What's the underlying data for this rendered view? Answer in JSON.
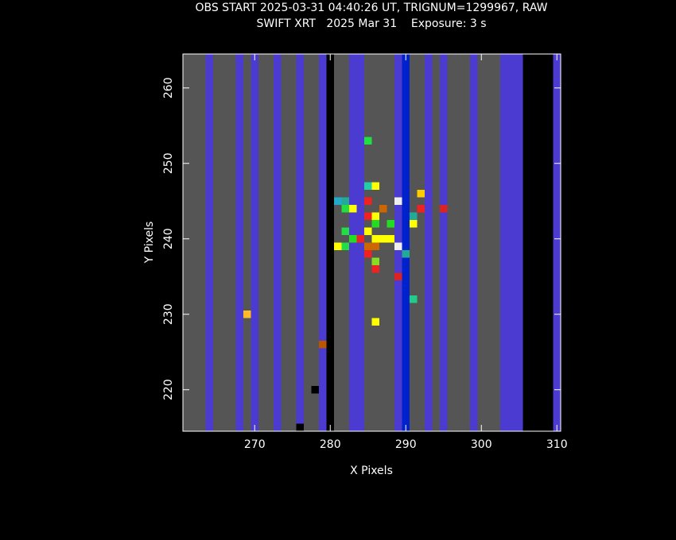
{
  "chart_data": {
    "type": "heatmap",
    "title": "OBS START 2025-03-31 04:40:26 UT, TRIGNUM=1299967, RAW",
    "subtitle": "SWIFT XRT   2025 Mar 31    Exposure: 3 s",
    "xlabel": "X Pixels",
    "ylabel": "Y Pixels",
    "xlim": [
      260.5,
      310.5
    ],
    "ylim": [
      214.5,
      264.5
    ],
    "xticks": [
      270,
      280,
      290,
      300,
      310
    ],
    "yticks": [
      220,
      230,
      240,
      250,
      260
    ],
    "axis_color": "#ffffff",
    "columns": [
      {
        "x": 261,
        "color": "#555555"
      },
      {
        "x": 262,
        "color": "#555555"
      },
      {
        "x": 263,
        "color": "#555555"
      },
      {
        "x": 264,
        "color": "#4b3bd0"
      },
      {
        "x": 265,
        "color": "#555555"
      },
      {
        "x": 266,
        "color": "#555555"
      },
      {
        "x": 267,
        "color": "#555555"
      },
      {
        "x": 268,
        "color": "#4b3bd0"
      },
      {
        "x": 269,
        "color": "#555555"
      },
      {
        "x": 270,
        "color": "#4b3bd0"
      },
      {
        "x": 271,
        "color": "#555555"
      },
      {
        "x": 272,
        "color": "#555555"
      },
      {
        "x": 273,
        "color": "#4b3bd0"
      },
      {
        "x": 274,
        "color": "#555555"
      },
      {
        "x": 275,
        "color": "#555555"
      },
      {
        "x": 276,
        "color": "#4b3bd0"
      },
      {
        "x": 277,
        "color": "#555555"
      },
      {
        "x": 278,
        "color": "#555555"
      },
      {
        "x": 279,
        "color": "#4b3bd0"
      },
      {
        "x": 280,
        "color": "#000000"
      },
      {
        "x": 281,
        "color": "#555555"
      },
      {
        "x": 282,
        "color": "#555555"
      },
      {
        "x": 283,
        "color": "#4b3bd0"
      },
      {
        "x": 284,
        "color": "#4b3bd0"
      },
      {
        "x": 285,
        "color": "#555555"
      },
      {
        "x": 286,
        "color": "#555555"
      },
      {
        "x": 287,
        "color": "#555555"
      },
      {
        "x": 288,
        "color": "#555555"
      },
      {
        "x": 289,
        "color": "#4b3bd0"
      },
      {
        "x": 290,
        "color": "#0022cc"
      },
      {
        "x": 291,
        "color": "#555555"
      },
      {
        "x": 292,
        "color": "#555555"
      },
      {
        "x": 293,
        "color": "#4b3bd0"
      },
      {
        "x": 294,
        "color": "#555555"
      },
      {
        "x": 295,
        "color": "#4b3bd0"
      },
      {
        "x": 296,
        "color": "#555555"
      },
      {
        "x": 297,
        "color": "#555555"
      },
      {
        "x": 298,
        "color": "#555555"
      },
      {
        "x": 299,
        "color": "#4b3bd0"
      },
      {
        "x": 300,
        "color": "#555555"
      },
      {
        "x": 301,
        "color": "#555555"
      },
      {
        "x": 302,
        "color": "#555555"
      },
      {
        "x": 303,
        "color": "#4b3bd0"
      },
      {
        "x": 304,
        "color": "#4b3bd0"
      },
      {
        "x": 305,
        "color": "#4b3bd0"
      },
      {
        "x": 306,
        "color": "#000000"
      },
      {
        "x": 307,
        "color": "#000000"
      },
      {
        "x": 308,
        "color": "#000000"
      },
      {
        "x": 309,
        "color": "#000000"
      },
      {
        "x": 310,
        "color": "#4b3bd0"
      }
    ],
    "pixels": [
      {
        "x": 285,
        "y": 253,
        "color": "#22dd44"
      },
      {
        "x": 285,
        "y": 247,
        "color": "#22ccaa"
      },
      {
        "x": 286,
        "y": 247,
        "color": "#ffff00"
      },
      {
        "x": 292,
        "y": 246,
        "color": "#ffcc00"
      },
      {
        "x": 289,
        "y": 245,
        "color": "#eeeeee"
      },
      {
        "x": 285,
        "y": 245,
        "color": "#ee2222"
      },
      {
        "x": 281,
        "y": 245,
        "color": "#22aacc"
      },
      {
        "x": 282,
        "y": 245,
        "color": "#22aa99"
      },
      {
        "x": 283,
        "y": 244,
        "color": "#ffff00"
      },
      {
        "x": 282,
        "y": 244,
        "color": "#22dd44"
      },
      {
        "x": 287,
        "y": 244,
        "color": "#cc6600"
      },
      {
        "x": 292,
        "y": 244,
        "color": "#ee2222"
      },
      {
        "x": 295,
        "y": 244,
        "color": "#dd2222"
      },
      {
        "x": 285,
        "y": 243,
        "color": "#ee2222"
      },
      {
        "x": 286,
        "y": 243,
        "color": "#ffff00"
      },
      {
        "x": 291,
        "y": 243,
        "color": "#22aa99"
      },
      {
        "x": 291,
        "y": 242,
        "color": "#ffff00"
      },
      {
        "x": 288,
        "y": 242,
        "color": "#22dd22"
      },
      {
        "x": 286,
        "y": 242,
        "color": "#22dd22"
      },
      {
        "x": 285,
        "y": 241,
        "color": "#ffff00"
      },
      {
        "x": 282,
        "y": 241,
        "color": "#22dd44"
      },
      {
        "x": 283,
        "y": 240,
        "color": "#22dd22"
      },
      {
        "x": 284,
        "y": 240,
        "color": "#ee2222"
      },
      {
        "x": 286,
        "y": 240,
        "color": "#ffff00"
      },
      {
        "x": 287,
        "y": 240,
        "color": "#ffff00"
      },
      {
        "x": 288,
        "y": 240,
        "color": "#ffff00"
      },
      {
        "x": 281,
        "y": 239,
        "color": "#ffff00"
      },
      {
        "x": 282,
        "y": 239,
        "color": "#22dd44"
      },
      {
        "x": 285,
        "y": 239,
        "color": "#cc6600"
      },
      {
        "x": 286,
        "y": 239,
        "color": "#cc6600"
      },
      {
        "x": 289,
        "y": 239,
        "color": "#eeeeee"
      },
      {
        "x": 290,
        "y": 238,
        "color": "#22aa99"
      },
      {
        "x": 285,
        "y": 238,
        "color": "#ee2222"
      },
      {
        "x": 286,
        "y": 237,
        "color": "#88dd22"
      },
      {
        "x": 286,
        "y": 236,
        "color": "#ee2222"
      },
      {
        "x": 289,
        "y": 235,
        "color": "#dd2222"
      },
      {
        "x": 291,
        "y": 232,
        "color": "#22cc88"
      },
      {
        "x": 269,
        "y": 230,
        "color": "#ffbb22"
      },
      {
        "x": 286,
        "y": 229,
        "color": "#ffff00"
      },
      {
        "x": 279,
        "y": 226,
        "color": "#bb5500"
      },
      {
        "x": 278,
        "y": 220,
        "color": "#000000"
      },
      {
        "x": 276,
        "y": 215,
        "color": "#000000"
      }
    ]
  }
}
